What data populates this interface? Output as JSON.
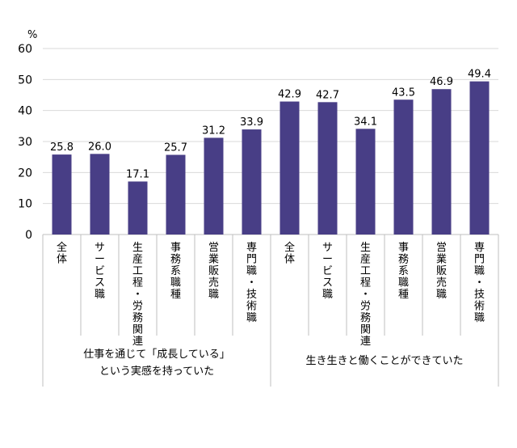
{
  "chart_data": {
    "type": "bar",
    "unit": "%",
    "ylim": [
      0,
      60
    ],
    "yticks": [
      0,
      10,
      20,
      30,
      40,
      50,
      60
    ],
    "grid": true,
    "bar_color": "#483E86",
    "grid_color": "#D9D9D9",
    "categories": [
      "全体",
      "サービス職",
      "生産工程・労務関連",
      "事務系職種",
      "営業販売職",
      "専門職・技術職",
      "全体",
      "サービス職",
      "生産工程・労務関連",
      "事務系職種",
      "営業販売職",
      "専門職・技術職"
    ],
    "values": [
      25.8,
      26.0,
      17.1,
      25.7,
      31.2,
      33.9,
      42.9,
      42.7,
      34.1,
      43.5,
      46.9,
      49.4
    ],
    "value_labels": [
      "25.8",
      "26.0",
      "17.1",
      "25.7",
      "31.2",
      "33.9",
      "42.9",
      "42.7",
      "34.1",
      "43.5",
      "46.9",
      "49.4"
    ],
    "groups": [
      {
        "label_lines": [
          "仕事を通じて「成長している」",
          "という実感を持っていた"
        ],
        "count": 6
      },
      {
        "label_lines": [
          "生き生きと働くことができていた"
        ],
        "count": 6
      }
    ]
  }
}
